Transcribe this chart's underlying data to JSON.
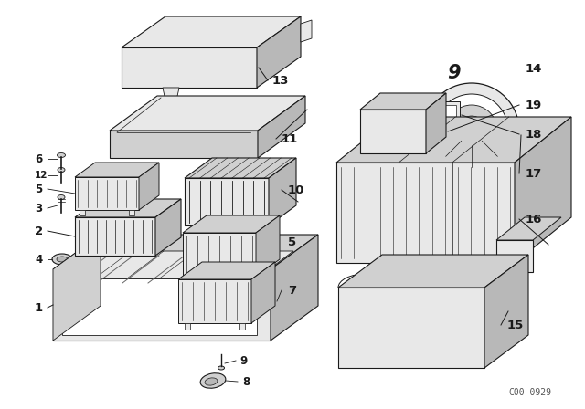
{
  "background_color": "#ffffff",
  "image_code": "C00-0929",
  "fig_width": 6.4,
  "fig_height": 4.48,
  "dpi": 100,
  "line_color": "#1a1a1a",
  "font_size": 8.5,
  "label_font_size": 9.5
}
